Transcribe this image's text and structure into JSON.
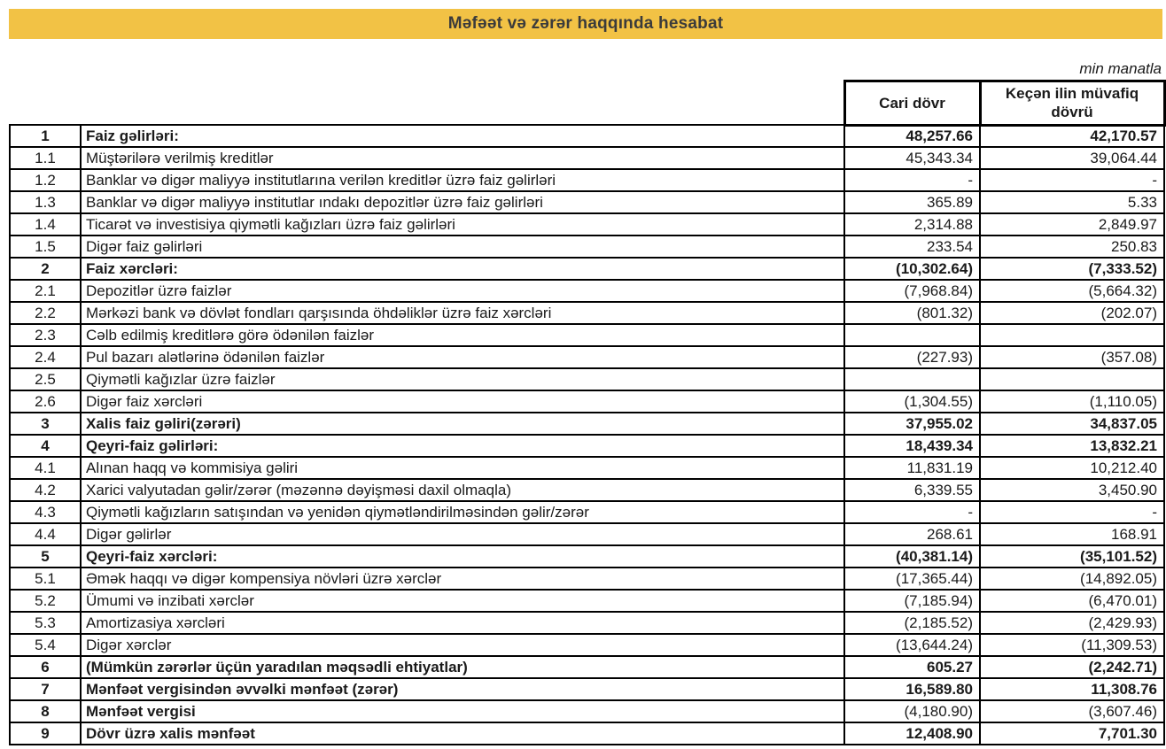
{
  "title_bar": {
    "title": "Məfəət və zərər haqqında hesabat",
    "bg_color": "#F2C245",
    "text_color": "#3B3B3B"
  },
  "unit_note": "min manatla",
  "table": {
    "col_current": "Cari dövr",
    "col_previous": "Keçən ilin müvafiq dövrü",
    "rows": [
      {
        "no": "1",
        "label": "Faiz gəlirləri:",
        "current": "48,257.66",
        "previous": "42,170.57",
        "section": true
      },
      {
        "no": "1.1",
        "label": "Müştərilərə verilmiş kreditlər",
        "current": "45,343.34",
        "previous": "39,064.44",
        "section": false
      },
      {
        "no": "1.2",
        "label": "Banklar və digər maliyyə institutlarına verilən kreditlər üzrə faiz gəlirləri",
        "current": "-",
        "previous": "-",
        "section": false
      },
      {
        "no": "1.3",
        "label": "Banklar və digər maliyyə institutlar ındakı depozitlər üzrə faiz gəlirləri",
        "current": "365.89",
        "previous": "5.33",
        "section": false
      },
      {
        "no": "1.4",
        "label": "Ticarət və investisiya qiymətli kağızları üzrə faiz gəlirləri",
        "current": "2,314.88",
        "previous": "2,849.97",
        "section": false
      },
      {
        "no": "1.5",
        "label": "Digər faiz gəlirləri",
        "current": "233.54",
        "previous": "250.83",
        "section": false
      },
      {
        "no": "2",
        "label": "Faiz xərcləri:",
        "current": "(10,302.64)",
        "previous": "(7,333.52)",
        "section": true
      },
      {
        "no": "2.1",
        "label": "Depozitlər üzrə faizlər",
        "current": "(7,968.84)",
        "previous": "(5,664.32)",
        "section": false
      },
      {
        "no": "2.2",
        "label": "Mərkəzi bank və dövlət fondları qarşısında öhdəliklər üzrə faiz xərcləri",
        "current": "(801.32)",
        "previous": "(202.07)",
        "section": false
      },
      {
        "no": "2.3",
        "label": "Cəlb edilmiş kreditlərə görə ödənilən faizlər",
        "current": "",
        "previous": "",
        "section": false
      },
      {
        "no": "2.4",
        "label": "Pul bazarı alətlərinə ödənilən faizlər",
        "current": "(227.93)",
        "previous": "(357.08)",
        "section": false
      },
      {
        "no": "2.5",
        "label": "Qiymətli kağızlar üzrə faizlər",
        "current": "",
        "previous": "",
        "section": false
      },
      {
        "no": "2.6",
        "label": "Digər faiz xərcləri",
        "current": "(1,304.55)",
        "previous": "(1,110.05)",
        "section": false
      },
      {
        "no": "3",
        "label": "Xalis faiz gəliri(zərəri)",
        "current": "37,955.02",
        "previous": "34,837.05",
        "section": true
      },
      {
        "no": "4",
        "label": "Qeyri-faiz gəlirləri:",
        "current": "18,439.34",
        "previous": "13,832.21",
        "section": true
      },
      {
        "no": "4.1",
        "label": "Alınan haqq və kommisiya gəliri",
        "current": "11,831.19",
        "previous": "10,212.40",
        "section": false
      },
      {
        "no": "4.2",
        "label": "Xarici valyutadan gəlir/zərər (məzənnə dəyişməsi daxil olmaqla)",
        "current": "6,339.55",
        "previous": "3,450.90",
        "section": false
      },
      {
        "no": "4.3",
        "label": "Qiymətli kağızların satışından və yenidən qiymətləndirilməsindən gəlir/zərər",
        "current": "-",
        "previous": "-",
        "section": false
      },
      {
        "no": "4.4",
        "label": "Digər gəlirlər",
        "current": "268.61",
        "previous": "168.91",
        "section": false
      },
      {
        "no": "5",
        "label": "Qeyri-faiz xərcləri:",
        "current": "(40,381.14)",
        "previous": "(35,101.52)",
        "section": true
      },
      {
        "no": "5.1",
        "label": "Əmək haqqı və digər kompensiya növləri üzrə xərclər",
        "current": "(17,365.44)",
        "previous": "(14,892.05)",
        "section": false
      },
      {
        "no": "5.2",
        "label": "Ümumi və inzibati xərclər",
        "current": "(7,185.94)",
        "previous": "(6,470.01)",
        "section": false
      },
      {
        "no": "5.3",
        "label": "Amortizasiya xərcləri",
        "current": "(2,185.52)",
        "previous": "(2,429.93)",
        "section": false
      },
      {
        "no": "5.4",
        "label": "Digər xərclər",
        "current": "(13,644.24)",
        "previous": "(11,309.53)",
        "section": false
      },
      {
        "no": "6",
        "label": "(Mümkün zərərlər üçün yaradılan məqsədli ehtiyatlar)",
        "current": "605.27",
        "previous": "(2,242.71)",
        "section": true
      },
      {
        "no": "7",
        "label": "Mənfəət vergisindən əvvəlki mənfəət (zərər)",
        "current": "16,589.80",
        "previous": "11,308.76",
        "section": true
      },
      {
        "no": "8",
        "label": "Mənfəət vergisi",
        "current": "(4,180.90)",
        "previous": "(3,607.46)",
        "section": true,
        "plain_values": true
      },
      {
        "no": "9",
        "label": "Dövr üzrə xalis mənfəət",
        "current": "12,408.90",
        "previous": "7,701.30",
        "section": true
      }
    ]
  }
}
